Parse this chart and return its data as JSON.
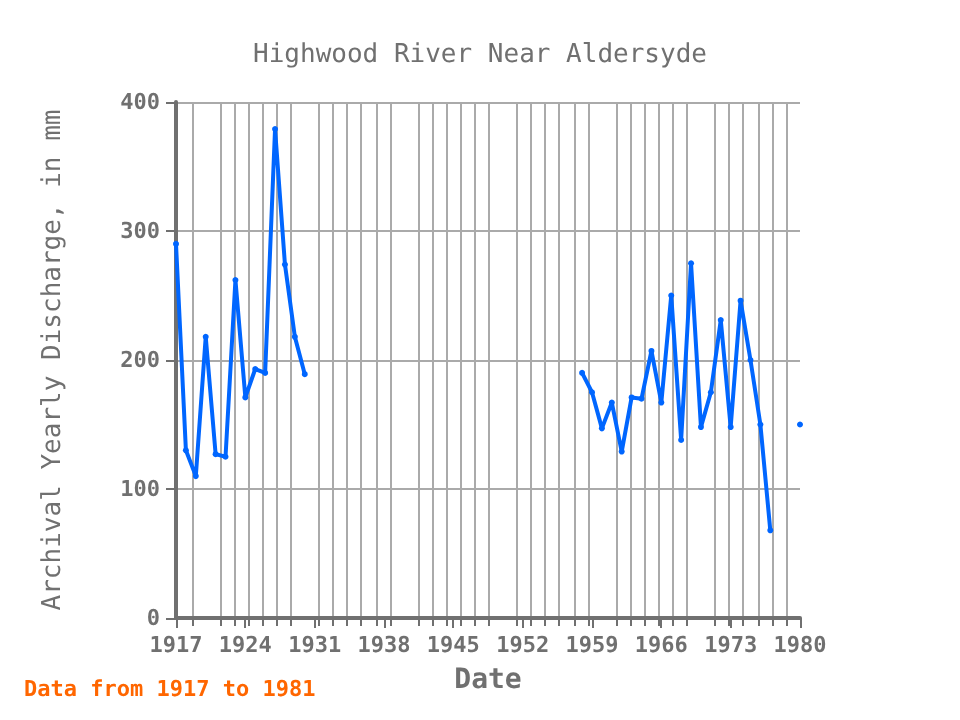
{
  "chart_data": {
    "type": "line",
    "title": "Highwood River Near Aldersyde",
    "xlabel": "Date",
    "ylabel": "Archival Yearly Discharge, in mm",
    "annotations": [
      "Data from 1917 to 1981"
    ],
    "x": [
      1917,
      1918,
      1919,
      1920,
      1921,
      1922,
      1923,
      1924,
      1925,
      1926,
      1927,
      1928,
      1929,
      1930,
      1931,
      1957,
      1958,
      1959,
      1960,
      1961,
      1962,
      1963,
      1964,
      1965,
      1966,
      1967,
      1968,
      1969,
      1970,
      1971,
      1972,
      1973,
      1974,
      1975,
      1976,
      1977,
      1978,
      1980
    ],
    "series": [
      {
        "color": "#0066ff",
        "values": [
          290,
          130,
          110,
          218,
          127,
          125,
          262,
          171,
          193,
          190,
          379,
          274,
          218,
          189,
          null,
          null,
          190,
          175,
          147,
          167,
          129,
          171,
          170,
          207,
          167,
          250,
          138,
          275,
          148,
          175,
          231,
          148,
          246,
          200,
          150,
          68,
          null,
          150
        ]
      }
    ],
    "xlim": [
      1917,
      1980
    ],
    "xticks": [
      1917,
      1924,
      1931,
      1938,
      1945,
      1952,
      1959,
      1966,
      1973,
      1980
    ],
    "ylim": [
      0,
      400
    ],
    "yticks": [
      0,
      100,
      200,
      300,
      400
    ],
    "grid": true,
    "marker": "circle",
    "line_style": "solid"
  }
}
